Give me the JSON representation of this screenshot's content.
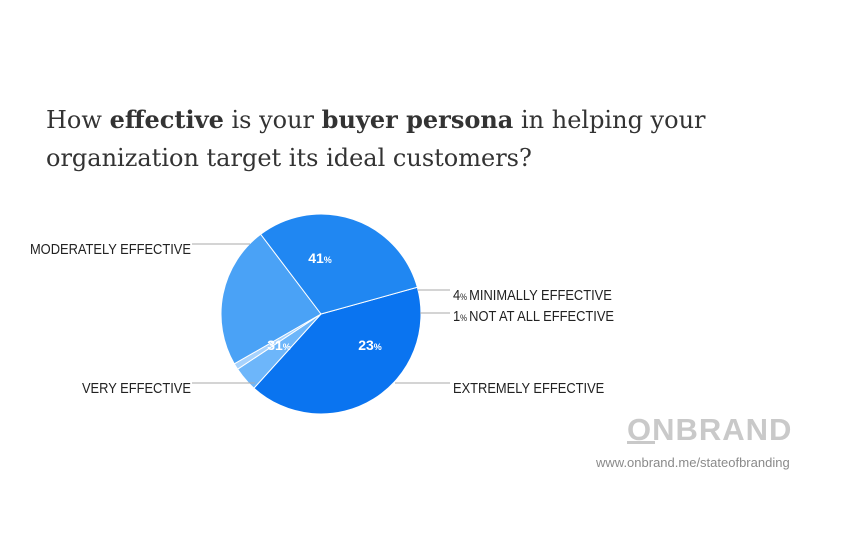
{
  "title": {
    "parts": [
      {
        "text": "How ",
        "bold": false
      },
      {
        "text": "effective",
        "bold": true
      },
      {
        "text": " is your ",
        "bold": false
      },
      {
        "text": "buyer persona",
        "bold": true
      },
      {
        "text": " in helping your organization target its ideal customers?",
        "bold": false
      }
    ]
  },
  "brand": {
    "logo_text": "ONBRAND",
    "url": "www.onbrand.me/stateofbranding"
  },
  "colors": {
    "moderately_effective": "#0a74f0",
    "very_effective": "#2087f2",
    "extremely_effective": "#4aa2f6",
    "minimally_effective": "#6db6fa",
    "not_at_all_effective": "#a6d2fd",
    "label_text": "#222222",
    "leader_line": "#aaaaaa",
    "logo": "#c9c9c9"
  },
  "chart_data": {
    "type": "pie",
    "slices": [
      {
        "label": "MODERATELY EFFECTIVE",
        "value": 41,
        "value_label": "41",
        "unit": "%",
        "color": "#0a74f0"
      },
      {
        "label": "MINIMALLY EFFECTIVE",
        "value": 4,
        "value_label": "4",
        "unit": "%",
        "color": "#6db6fa"
      },
      {
        "label": "NOT AT ALL EFFECTIVE",
        "value": 1,
        "value_label": "1",
        "unit": "%",
        "color": "#a6d2fd"
      },
      {
        "label": "EXTREMELY EFFECTIVE",
        "value": 23,
        "value_label": "23",
        "unit": "%",
        "color": "#4aa2f6"
      },
      {
        "label": "VERY EFFECTIVE",
        "value": 31,
        "value_label": "31",
        "unit": "%",
        "color": "#2087f2"
      }
    ]
  }
}
